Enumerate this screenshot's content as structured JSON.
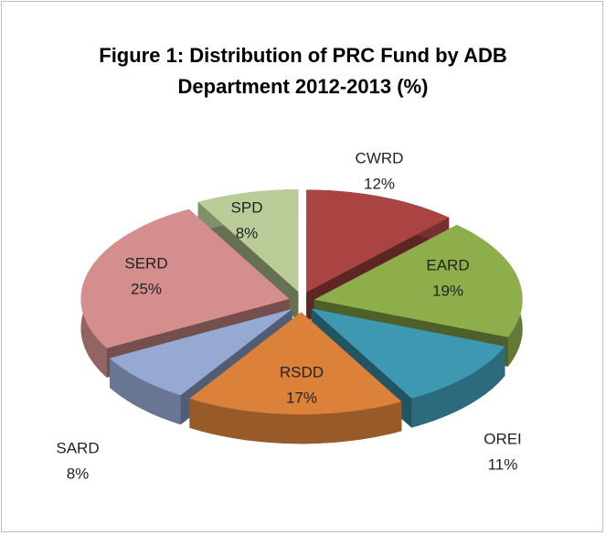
{
  "chart_data": {
    "type": "pie3d",
    "title": "Figure 1: Distribution of PRC Fund by ADB Department 2012-2013 (%)",
    "categories": [
      "CWRD",
      "EARD",
      "OREI",
      "RSDD",
      "SARD",
      "SERD",
      "SPD"
    ],
    "values": [
      12,
      19,
      11,
      17,
      8,
      25,
      8
    ],
    "value_labels": [
      "12%",
      "19%",
      "11%",
      "17%",
      "8%",
      "25%",
      "8%"
    ],
    "colors": [
      "#a94442",
      "#8ead4b",
      "#3f98b2",
      "#db813a",
      "#95a9d3",
      "#d48e8d",
      "#bacd98"
    ]
  }
}
